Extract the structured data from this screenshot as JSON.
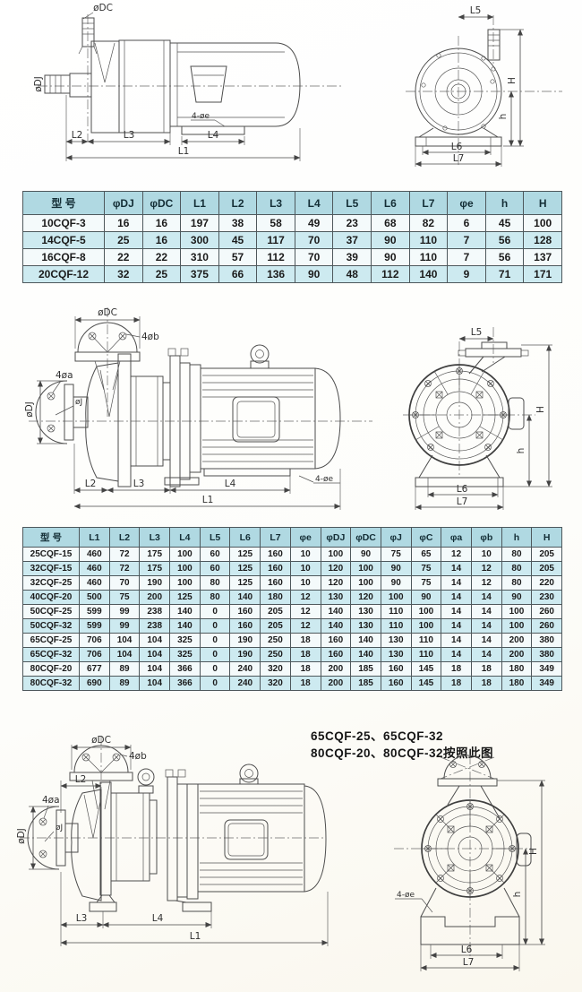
{
  "note": {
    "line1": "65CQF-25、65CQF-32",
    "line2": "80CQF-20、80CQF-32按照此图"
  },
  "dim_labels": {
    "phi_dc": "øDC",
    "phi_dj": "øDJ",
    "phi_j": "øJ",
    "four_phi_e": "4-øe",
    "four_phi_b": "4øb",
    "four_phi_a": "4øa",
    "l1": "L1",
    "l2": "L2",
    "l3": "L3",
    "l4": "L4",
    "l5": "L5",
    "l6": "L6",
    "l7": "L7",
    "h_small": "h",
    "h_big": "H"
  },
  "table1": {
    "headers": [
      "型 号",
      "φDJ",
      "φDC",
      "L1",
      "L2",
      "L3",
      "L4",
      "L5",
      "L6",
      "L7",
      "φe",
      "h",
      "H"
    ],
    "rows": [
      [
        "10CQF-3",
        "16",
        "16",
        "197",
        "38",
        "58",
        "49",
        "23",
        "68",
        "82",
        "6",
        "45",
        "100"
      ],
      [
        "14CQF-5",
        "25",
        "16",
        "300",
        "45",
        "117",
        "70",
        "37",
        "90",
        "110",
        "7",
        "56",
        "128"
      ],
      [
        "16CQF-8",
        "22",
        "22",
        "310",
        "57",
        "112",
        "70",
        "39",
        "90",
        "110",
        "7",
        "56",
        "137"
      ],
      [
        "20CQF-12",
        "32",
        "25",
        "375",
        "66",
        "136",
        "90",
        "48",
        "112",
        "140",
        "9",
        "71",
        "171"
      ]
    ]
  },
  "table2": {
    "headers": [
      "型 号",
      "L1",
      "L2",
      "L3",
      "L4",
      "L5",
      "L6",
      "L7",
      "φe",
      "φDJ",
      "φDC",
      "φJ",
      "φC",
      "φa",
      "φb",
      "h",
      "H"
    ],
    "rows": [
      [
        "25CQF-15",
        "460",
        "72",
        "175",
        "100",
        "60",
        "125",
        "160",
        "10",
        "100",
        "90",
        "75",
        "65",
        "12",
        "10",
        "80",
        "205"
      ],
      [
        "32CQF-15",
        "460",
        "72",
        "175",
        "100",
        "60",
        "125",
        "160",
        "10",
        "120",
        "100",
        "90",
        "75",
        "14",
        "12",
        "80",
        "205"
      ],
      [
        "32CQF-25",
        "460",
        "70",
        "190",
        "100",
        "80",
        "125",
        "160",
        "10",
        "120",
        "100",
        "90",
        "75",
        "14",
        "12",
        "80",
        "220"
      ],
      [
        "40CQF-20",
        "500",
        "75",
        "200",
        "125",
        "80",
        "140",
        "180",
        "12",
        "130",
        "120",
        "100",
        "90",
        "14",
        "14",
        "90",
        "230"
      ],
      [
        "50CQF-25",
        "599",
        "99",
        "238",
        "140",
        "0",
        "160",
        "205",
        "12",
        "140",
        "130",
        "110",
        "100",
        "14",
        "14",
        "100",
        "260"
      ],
      [
        "50CQF-32",
        "599",
        "99",
        "238",
        "140",
        "0",
        "160",
        "205",
        "12",
        "140",
        "130",
        "110",
        "100",
        "14",
        "14",
        "100",
        "260"
      ],
      [
        "65CQF-25",
        "706",
        "104",
        "104",
        "325",
        "0",
        "190",
        "250",
        "18",
        "160",
        "140",
        "130",
        "110",
        "14",
        "14",
        "200",
        "380"
      ],
      [
        "65CQF-32",
        "706",
        "104",
        "104",
        "325",
        "0",
        "190",
        "250",
        "18",
        "160",
        "140",
        "130",
        "110",
        "14",
        "14",
        "200",
        "380"
      ],
      [
        "80CQF-20",
        "677",
        "89",
        "104",
        "366",
        "0",
        "240",
        "320",
        "18",
        "200",
        "185",
        "160",
        "145",
        "18",
        "18",
        "180",
        "349"
      ],
      [
        "80CQF-32",
        "690",
        "89",
        "104",
        "366",
        "0",
        "240",
        "320",
        "18",
        "200",
        "185",
        "160",
        "145",
        "18",
        "18",
        "180",
        "349"
      ]
    ]
  },
  "colors": {
    "table_header_bg": "#b0d9e2",
    "table_row_alt_bg": "#cdeaf0",
    "table_border": "#4e585c",
    "drawing_line": "#4d4d4d"
  }
}
